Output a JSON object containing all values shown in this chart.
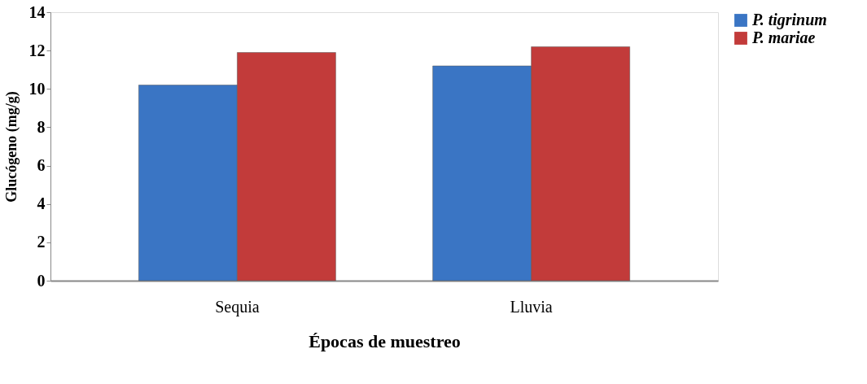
{
  "chart_data": {
    "type": "bar",
    "xlabel": "Épocas de muestreo",
    "ylabel": "Glucógeno (mg/g)",
    "categories": [
      "Sequia",
      "Lluvia"
    ],
    "series": [
      {
        "name": "P. tigrinum",
        "color": "#3a75c4",
        "values": [
          10.2,
          11.2
        ]
      },
      {
        "name": "P. mariae",
        "color": "#c23b3a",
        "values": [
          11.9,
          12.2
        ]
      }
    ],
    "ylim": [
      0,
      14
    ],
    "yticks": [
      0,
      2,
      4,
      6,
      8,
      10,
      12,
      14
    ],
    "grid": false,
    "legend": "right"
  }
}
